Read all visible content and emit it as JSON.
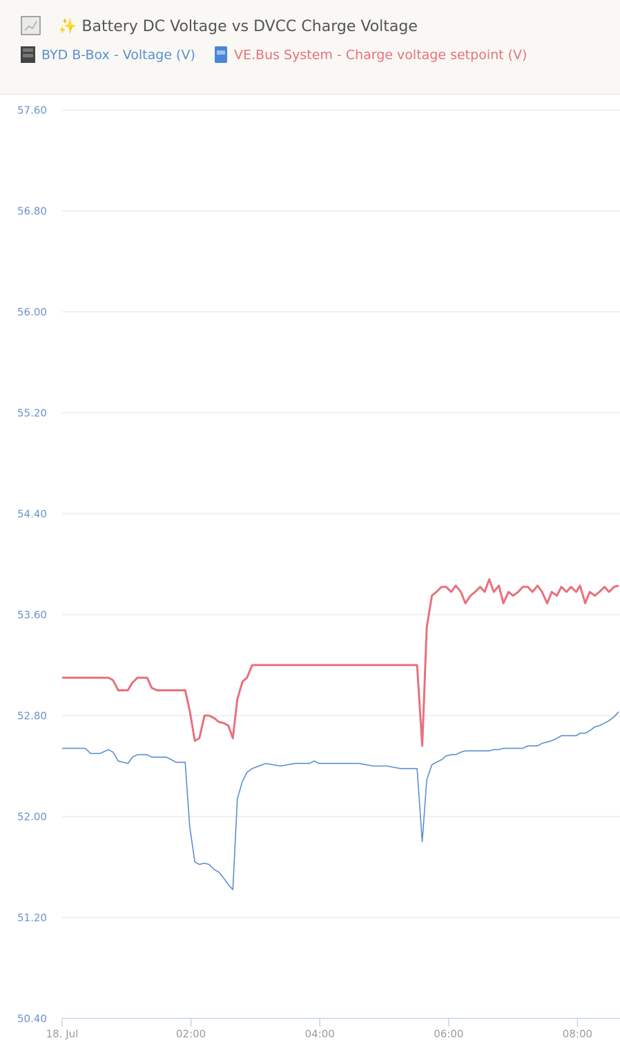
{
  "chart_data": {
    "type": "line",
    "title": "✨ Battery DC Voltage vs DVCC Charge Voltage",
    "x": [
      0,
      0.36,
      0.44,
      0.59,
      0.72,
      0.79,
      0.87,
      1.02,
      1.09,
      1.17,
      1.32,
      1.39,
      1.47,
      1.62,
      1.77,
      1.91,
      1.98,
      2.06,
      2.13,
      2.21,
      2.28,
      2.36,
      2.43,
      2.51,
      2.58,
      2.65,
      2.72,
      2.8,
      2.87,
      2.95,
      3.16,
      3.39,
      3.61,
      3.84,
      3.91,
      3.99,
      4.29,
      4.61,
      4.83,
      5.04,
      5.25,
      5.36,
      5.51,
      5.59,
      5.66,
      5.74,
      5.81,
      5.89,
      5.96,
      6.04,
      6.11,
      6.19,
      6.26,
      6.34,
      6.41,
      6.49,
      6.56,
      6.63,
      6.7,
      6.78,
      6.85,
      6.93,
      7.0,
      7.08,
      7.15,
      7.23,
      7.3,
      7.38,
      7.45,
      7.53,
      7.6,
      7.68,
      7.75,
      7.83,
      7.9,
      7.98,
      8.04,
      8.12,
      8.19,
      8.27,
      8.34,
      8.42,
      8.49,
      8.57,
      8.64
    ],
    "series": [
      {
        "name": "BYD B-Box - Voltage (V)",
        "color": "#5b8fd0",
        "values": [
          52.54,
          52.54,
          52.5,
          52.5,
          52.53,
          52.51,
          52.44,
          52.42,
          52.47,
          52.49,
          52.49,
          52.47,
          52.47,
          52.47,
          52.43,
          52.43,
          51.92,
          51.64,
          51.62,
          51.63,
          51.62,
          51.58,
          51.56,
          51.51,
          51.46,
          51.42,
          52.14,
          52.28,
          52.35,
          52.38,
          52.42,
          52.4,
          52.42,
          52.42,
          52.44,
          52.42,
          52.42,
          52.42,
          52.4,
          52.4,
          52.38,
          52.38,
          52.38,
          51.8,
          52.29,
          52.41,
          52.43,
          52.45,
          52.48,
          52.49,
          52.49,
          52.51,
          52.52,
          52.52,
          52.52,
          52.52,
          52.52,
          52.52,
          52.53,
          52.53,
          52.54,
          52.54,
          52.54,
          52.54,
          52.54,
          52.56,
          52.56,
          52.56,
          52.58,
          52.59,
          52.6,
          52.62,
          52.64,
          52.64,
          52.64,
          52.64,
          52.66,
          52.66,
          52.68,
          52.71,
          52.72,
          52.74,
          52.76,
          52.79,
          52.83
        ]
      },
      {
        "name": "VE.Bus System - Charge voltage setpoint (V)",
        "color": "#e8707c",
        "values": [
          53.1,
          53.1,
          53.1,
          53.1,
          53.1,
          53.08,
          53.0,
          53.0,
          53.06,
          53.1,
          53.1,
          53.02,
          53.0,
          53.0,
          53.0,
          53.0,
          52.84,
          52.6,
          52.62,
          52.8,
          52.8,
          52.78,
          52.75,
          52.74,
          52.72,
          52.62,
          52.93,
          53.07,
          53.1,
          53.2,
          53.2,
          53.2,
          53.2,
          53.2,
          53.2,
          53.2,
          53.2,
          53.2,
          53.2,
          53.2,
          53.2,
          53.2,
          53.2,
          52.56,
          53.5,
          53.75,
          53.78,
          53.82,
          53.82,
          53.78,
          53.83,
          53.78,
          53.69,
          53.75,
          53.78,
          53.82,
          53.78,
          53.88,
          53.78,
          53.83,
          53.69,
          53.78,
          53.75,
          53.78,
          53.82,
          53.82,
          53.78,
          53.83,
          53.78,
          53.69,
          53.78,
          53.75,
          53.82,
          53.78,
          53.82,
          53.78,
          53.83,
          53.69,
          53.78,
          53.75,
          53.78,
          53.82,
          53.78,
          53.82,
          53.83
        ]
      }
    ],
    "xlim": [
      0,
      8.66
    ],
    "xticks": [
      {
        "value": 0,
        "label": "18. Jul"
      },
      {
        "value": 2,
        "label": "02:00"
      },
      {
        "value": 4,
        "label": "04:00"
      },
      {
        "value": 6,
        "label": "06:00"
      },
      {
        "value": 8,
        "label": "08:00"
      }
    ],
    "ylim": [
      50.4,
      57.6
    ],
    "yticks": [
      {
        "value": 50.4,
        "label": "50.40"
      },
      {
        "value": 51.2,
        "label": "51.20"
      },
      {
        "value": 52,
        "label": "52.00"
      },
      {
        "value": 52.8,
        "label": "52.80"
      },
      {
        "value": 53.6,
        "label": "53.60"
      },
      {
        "value": 54.4,
        "label": "54.40"
      },
      {
        "value": 55.2,
        "label": "55.20"
      },
      {
        "value": 56,
        "label": "56.00"
      },
      {
        "value": 56.8,
        "label": "56.80"
      },
      {
        "value": 57.6,
        "label": "57.60"
      }
    ],
    "grid": true
  }
}
